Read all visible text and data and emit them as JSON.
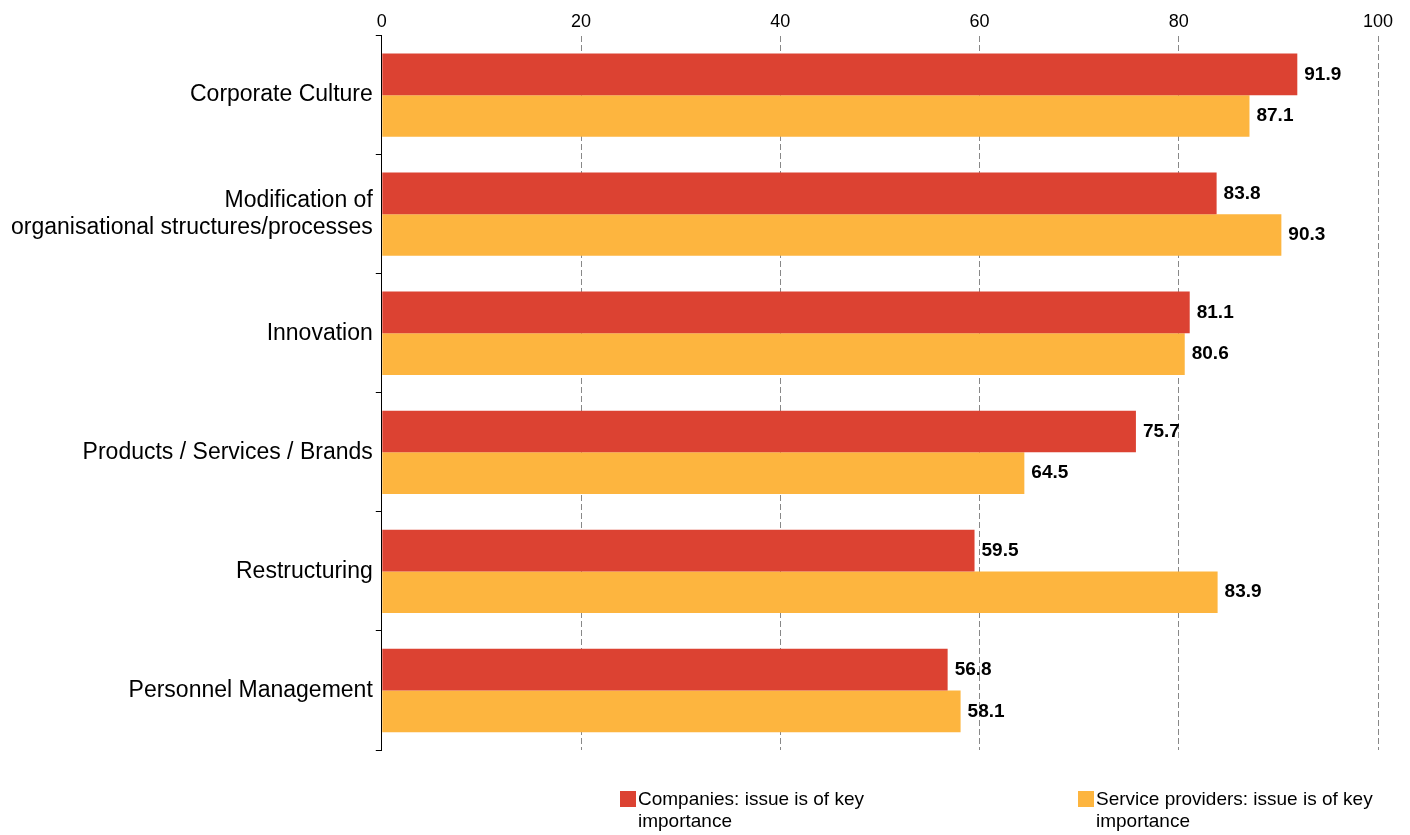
{
  "chart_data": {
    "type": "bar",
    "orientation": "horizontal",
    "categories": [
      "Corporate Culture",
      "Modification of organisational structures/processes",
      "Innovation",
      "Products / Services / Brands",
      "Restructuring",
      "Personnel Management"
    ],
    "series": [
      {
        "name": "Companies: issue is of key importance",
        "color": "#dc4232",
        "values": [
          91.9,
          83.8,
          81.1,
          75.7,
          59.5,
          56.8
        ]
      },
      {
        "name": "Service providers: issue is of key importance",
        "color": "#fdb53f",
        "values": [
          87.1,
          90.3,
          80.6,
          64.5,
          83.9,
          58.1
        ]
      }
    ],
    "xlim": [
      0,
      100
    ],
    "xticks": [
      0,
      20,
      40,
      60,
      80,
      100
    ],
    "grid": "x",
    "legend": "bottom",
    "data_labels": true
  }
}
